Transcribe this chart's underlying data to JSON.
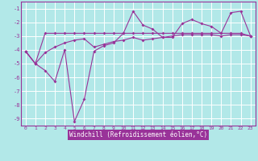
{
  "background_color": "#b2e8e8",
  "grid_color": "#ffffff",
  "line_color": "#993399",
  "xlabel": "Windchill (Refroidissement éolien,°C)",
  "xlabel_bgcolor": "#993399",
  "xlabel_fgcolor": "#ffffff",
  "ylim": [
    -9.5,
    -0.5
  ],
  "xlim": [
    -0.5,
    23.5
  ],
  "yticks": [
    -9,
    -8,
    -7,
    -6,
    -5,
    -4,
    -3,
    -2,
    -1
  ],
  "xticks": [
    0,
    1,
    2,
    3,
    4,
    5,
    6,
    7,
    8,
    9,
    10,
    11,
    12,
    13,
    14,
    15,
    16,
    17,
    18,
    19,
    20,
    21,
    22,
    23
  ],
  "line1_x": [
    0,
    1,
    2,
    3,
    4,
    5,
    6,
    7,
    8,
    9,
    10,
    11,
    12,
    13,
    14,
    15,
    16,
    17,
    18,
    19,
    20,
    21,
    22,
    23
  ],
  "line1_y": [
    -4.1,
    -5.0,
    -2.8,
    -2.8,
    -2.8,
    -2.8,
    -2.8,
    -2.8,
    -2.8,
    -2.8,
    -2.8,
    -2.8,
    -2.8,
    -2.8,
    -2.8,
    -2.8,
    -2.8,
    -2.8,
    -2.8,
    -2.8,
    -2.8,
    -2.8,
    -2.8,
    -3.0
  ],
  "line2_x": [
    0,
    1,
    2,
    3,
    4,
    5,
    6,
    7,
    8,
    9,
    10,
    11,
    12,
    13,
    14,
    15,
    16,
    17,
    18,
    19,
    20,
    21,
    22,
    23
  ],
  "line2_y": [
    -4.1,
    -5.0,
    -5.5,
    -6.3,
    -4.0,
    -9.2,
    -7.6,
    -4.1,
    -3.7,
    -3.5,
    -2.8,
    -1.2,
    -2.2,
    -2.5,
    -3.1,
    -3.1,
    -2.1,
    -1.8,
    -2.1,
    -2.3,
    -2.8,
    -1.3,
    -1.2,
    -3.0
  ],
  "line3_x": [
    0,
    1,
    2,
    3,
    4,
    5,
    6,
    7,
    8,
    9,
    10,
    11,
    12,
    13,
    14,
    15,
    16,
    17,
    18,
    19,
    20,
    21,
    22,
    23
  ],
  "line3_y": [
    -4.1,
    -5.0,
    -4.2,
    -3.8,
    -3.5,
    -3.3,
    -3.2,
    -3.8,
    -3.6,
    -3.4,
    -3.3,
    -3.1,
    -3.3,
    -3.2,
    -3.1,
    -3.0,
    -2.9,
    -2.9,
    -2.9,
    -2.9,
    -3.0,
    -2.9,
    -2.9,
    -3.0
  ]
}
